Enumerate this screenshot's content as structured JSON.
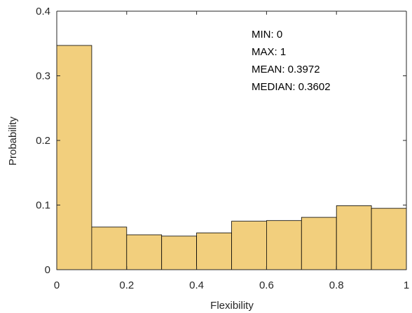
{
  "chart_data": {
    "type": "bar",
    "xlabel": "Flexibility",
    "ylabel": "Probability",
    "xlim": [
      0,
      1
    ],
    "ylim": [
      0,
      0.4
    ],
    "bin_edges": [
      0,
      0.1,
      0.2,
      0.3,
      0.4,
      0.5,
      0.6,
      0.7,
      0.8,
      0.9,
      1.0
    ],
    "values": [
      0.347,
      0.066,
      0.054,
      0.052,
      0.057,
      0.075,
      0.076,
      0.081,
      0.099,
      0.095
    ],
    "xticks": [
      0,
      0.2,
      0.4,
      0.6,
      0.8,
      1
    ],
    "xtick_labels": [
      "0",
      "0.2",
      "0.4",
      "0.6",
      "0.8",
      "1"
    ],
    "yticks": [
      0,
      0.1,
      0.2,
      0.3,
      0.4
    ],
    "ytick_labels": [
      "0",
      "0.1",
      "0.2",
      "0.3",
      "0.4"
    ],
    "annotations": [
      "MIN: 0",
      "MAX: 1",
      "MEAN: 0.3972",
      "MEDIAN: 0.3602"
    ],
    "bar_color": "#f2cf7d",
    "grid": false
  }
}
